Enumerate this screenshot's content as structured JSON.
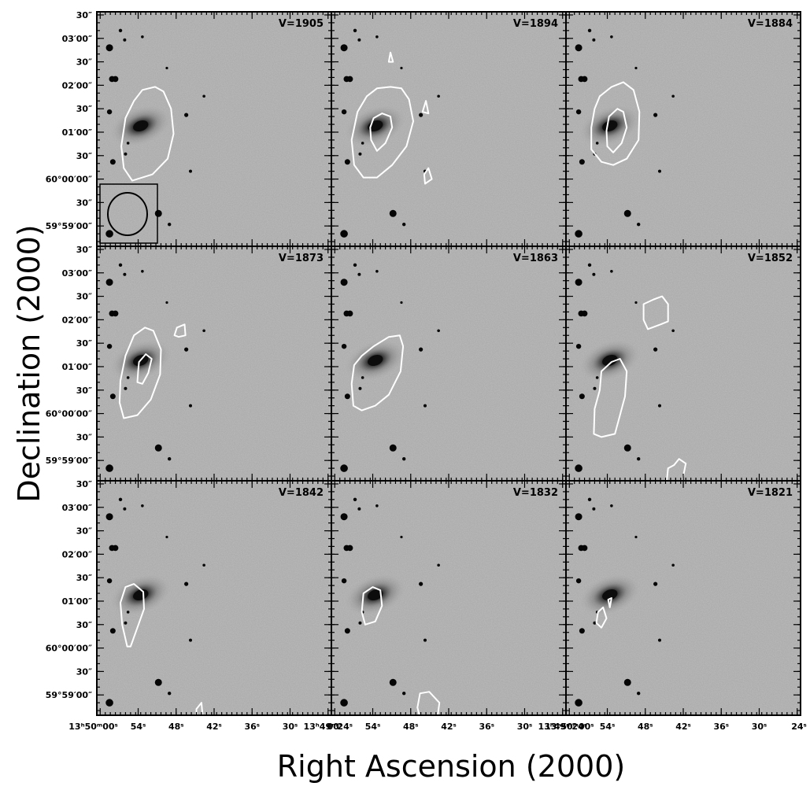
{
  "chart_data": {
    "type": "channel-map",
    "xlabel": "Right Ascension (2000)",
    "ylabel": "Declination (2000)",
    "grid": "3x3",
    "panels": [
      {
        "velocity_label": "V=1905",
        "contours": [
          [
            [
              -50,
              55
            ],
            [
              -40,
              48
            ],
            [
              -25,
              46
            ],
            [
              -15,
              49
            ],
            [
              -6,
              60
            ],
            [
              -3,
              76
            ],
            [
              -10,
              92
            ],
            [
              -28,
              102
            ],
            [
              -52,
              106
            ],
            [
              -62,
              98
            ],
            [
              -65,
              84
            ],
            [
              -60,
              66
            ]
          ]
        ],
        "beam": true
      },
      {
        "velocity_label": "V=1894",
        "contours": [
          [
            [
              -52,
              52
            ],
            [
              -40,
              47
            ],
            [
              -24,
              46
            ],
            [
              -11,
              47
            ],
            [
              -2,
              54
            ],
            [
              3,
              68
            ],
            [
              -5,
              84
            ],
            [
              -22,
              96
            ],
            [
              -40,
              104
            ],
            [
              -56,
              104
            ],
            [
              -67,
              96
            ],
            [
              -70,
              80
            ],
            [
              -63,
              62
            ]
          ],
          [
            [
              -44,
              66
            ],
            [
              -34,
              63
            ],
            [
              -24,
              65
            ],
            [
              -22,
              72
            ],
            [
              -30,
              82
            ],
            [
              -40,
              87
            ],
            [
              -47,
              80
            ],
            [
              -48,
              72
            ]
          ],
          [
            [
              -26,
              30
            ],
            [
              -24,
              24
            ],
            [
              -21,
              30
            ]
          ],
          [
            [
              14,
              62
            ],
            [
              18,
              55
            ],
            [
              21,
              63
            ]
          ],
          [
            [
              16,
              102
            ],
            [
              21,
              98
            ],
            [
              25,
              105
            ],
            [
              17,
              108
            ]
          ]
        ],
        "beam": false
      },
      {
        "velocity_label": "V=1884",
        "contours": [
          [
            [
              -54,
              52
            ],
            [
              -40,
              46
            ],
            [
              -26,
              43
            ],
            [
              -14,
              48
            ],
            [
              -7,
              62
            ],
            [
              -8,
              80
            ],
            [
              -22,
              92
            ],
            [
              -38,
              96
            ],
            [
              -52,
              94
            ],
            [
              -64,
              86
            ],
            [
              -64,
              72
            ],
            [
              -60,
              60
            ]
          ],
          [
            [
              -43,
              65
            ],
            [
              -33,
              60
            ],
            [
              -26,
              62
            ],
            [
              -22,
              72
            ],
            [
              -28,
              82
            ],
            [
              -38,
              88
            ],
            [
              -45,
              84
            ],
            [
              -46,
              74
            ]
          ]
        ],
        "beam": false
      },
      {
        "velocity_label": "V=1873",
        "contours": [
          [
            [
              -50,
              55
            ],
            [
              -37,
              50
            ],
            [
              -27,
              52
            ],
            [
              -18,
              64
            ],
            [
              -19,
              80
            ],
            [
              -30,
              96
            ],
            [
              -46,
              106
            ],
            [
              -62,
              108
            ],
            [
              -67,
              98
            ],
            [
              -66,
              84
            ],
            [
              -60,
              68
            ]
          ],
          [
            [
              -44,
              72
            ],
            [
              -36,
              67
            ],
            [
              -29,
              70
            ],
            [
              -33,
              79
            ],
            [
              -40,
              86
            ],
            [
              -46,
              85
            ],
            [
              -45,
              78
            ]
          ],
          [
            [
              -2,
              55
            ],
            [
              1,
              50
            ],
            [
              10,
              48
            ],
            [
              11,
              55
            ],
            [
              3,
              56
            ]
          ]
        ],
        "beam": false
      },
      {
        "velocity_label": "V=1863",
        "contours": [
          [
            [
              -58,
              68
            ],
            [
              -44,
              62
            ],
            [
              -26,
              56
            ],
            [
              -13,
              55
            ],
            [
              -9,
              62
            ],
            [
              -12,
              78
            ],
            [
              -26,
              93
            ],
            [
              -42,
              100
            ],
            [
              -58,
              103
            ],
            [
              -68,
              100
            ],
            [
              -70,
              86
            ],
            [
              -67,
              74
            ]
          ]
        ],
        "beam": false
      },
      {
        "velocity_label": "V=1852",
        "contours": [
          [
            [
              -40,
              72
            ],
            [
              -30,
              70
            ],
            [
              -22,
              78
            ],
            [
              -24,
              94
            ],
            [
              -30,
              106
            ],
            [
              -36,
              118
            ],
            [
              -52,
              120
            ],
            [
              -61,
              118
            ],
            [
              -60,
              102
            ],
            [
              -54,
              90
            ],
            [
              -52,
              78
            ]
          ],
          [
            [
              -2,
              35
            ],
            [
              10,
              32
            ],
            [
              20,
              30
            ],
            [
              27,
              35
            ],
            [
              27,
              46
            ],
            [
              18,
              48
            ],
            [
              3,
              51
            ],
            [
              -2,
              45
            ]
          ],
          [
            [
              34,
              138
            ],
            [
              40,
              134
            ],
            [
              48,
              137
            ],
            [
              42,
              153
            ],
            [
              30,
              156
            ],
            [
              25,
              150
            ],
            [
              27,
              140
            ]
          ]
        ],
        "beam": false
      },
      {
        "velocity_label": "V=1842",
        "contours": [
          [
            [
              -60,
              66
            ],
            [
              -50,
              64
            ],
            [
              -39,
              69
            ],
            [
              -38,
              80
            ],
            [
              -46,
              92
            ],
            [
              -54,
              104
            ],
            [
              -58,
              104
            ],
            [
              -64,
              90
            ],
            [
              -66,
              76
            ]
          ],
          [
            [
              24,
              144
            ],
            [
              30,
              140
            ],
            [
              32,
              152
            ],
            [
              24,
              152
            ]
          ]
        ],
        "beam": false
      },
      {
        "velocity_label": "V=1832",
        "contours": [
          [
            [
              -56,
              70
            ],
            [
              -45,
              66
            ],
            [
              -36,
              68
            ],
            [
              -34,
              78
            ],
            [
              -42,
              88
            ],
            [
              -54,
              90
            ],
            [
              -58,
              82
            ]
          ],
          [
            [
              11,
              134
            ],
            [
              22,
              133
            ],
            [
              34,
              140
            ],
            [
              32,
              148
            ],
            [
              21,
              152
            ],
            [
              12,
              152
            ],
            [
              8,
              143
            ]
          ]
        ],
        "beam": false
      },
      {
        "velocity_label": "V=1821",
        "contours": [
          [
            [
              -56,
              82
            ],
            [
              -50,
              79
            ],
            [
              -46,
              86
            ],
            [
              -52,
              92
            ],
            [
              -58,
              89
            ]
          ],
          [
            [
              -44,
              74
            ],
            [
              -40,
              73
            ],
            [
              -42,
              79
            ]
          ]
        ],
        "beam": false
      }
    ],
    "x_ticks": {
      "labels_first": [
        "13ʰ50ᵐ00ˢ",
        "54ˢ",
        "48ˢ",
        "42ˢ",
        "36ˢ",
        "30ˢ",
        "13ʰ49ᵐ24ˢ"
      ],
      "labels_inner": [
        "00ˢ",
        "54ˢ",
        "48ˢ",
        "42ˢ",
        "36ˢ",
        "30ˢ",
        "13ʰ49ᵐ24ˢ"
      ],
      "labels_last": [
        "13ʰ50ᵐ00ˢ",
        "54ˢ",
        "48ˢ",
        "42ˢ",
        "36ˢ",
        "30ˢ",
        "24ˢ"
      ],
      "offsets_arcsec": [
        -90,
        -45,
        0,
        45,
        90,
        135,
        180
      ]
    },
    "y_ticks": {
      "labels": [
        "30″",
        "03′00″",
        "30″",
        "02′00″",
        "30″",
        "01′00″",
        "30″",
        "60°00′00″",
        "30″",
        "59°59′00″"
      ],
      "offsets_arcsec": [
        0,
        15,
        30,
        45,
        60,
        75,
        90,
        105,
        120,
        135
      ]
    },
    "stars": [
      {
        "x": -79,
        "y": 21,
        "r": 4.5
      },
      {
        "x": -76,
        "y": 41,
        "r": 3.8
      },
      {
        "x": -72,
        "y": 41,
        "r": 3.8
      },
      {
        "x": -61,
        "y": 16,
        "r": 2
      },
      {
        "x": -79,
        "y": 62,
        "r": 3.2
      },
      {
        "x": -75,
        "y": 94,
        "r": 3.5
      },
      {
        "x": -79,
        "y": 140,
        "r": 4.8
      },
      {
        "x": -60,
        "y": 89,
        "r": 2
      },
      {
        "x": -57,
        "y": 82,
        "r": 1.8
      },
      {
        "x": -40,
        "y": 14,
        "r": 1.8
      },
      {
        "x": -21,
        "y": 127,
        "r": 4.5
      },
      {
        "x": -8,
        "y": 134,
        "r": 2.2
      },
      {
        "x": 12,
        "y": 64,
        "r": 2.6
      },
      {
        "x": 17,
        "y": 100,
        "r": 2
      },
      {
        "x": 7,
        "y": 150,
        "r": 2.2
      },
      {
        "x": 33,
        "y": 52,
        "r": 1.8
      },
      {
        "x": -66,
        "y": 10,
        "r": 2.2
      },
      {
        "x": -11,
        "y": 34,
        "r": 1.6
      }
    ]
  }
}
